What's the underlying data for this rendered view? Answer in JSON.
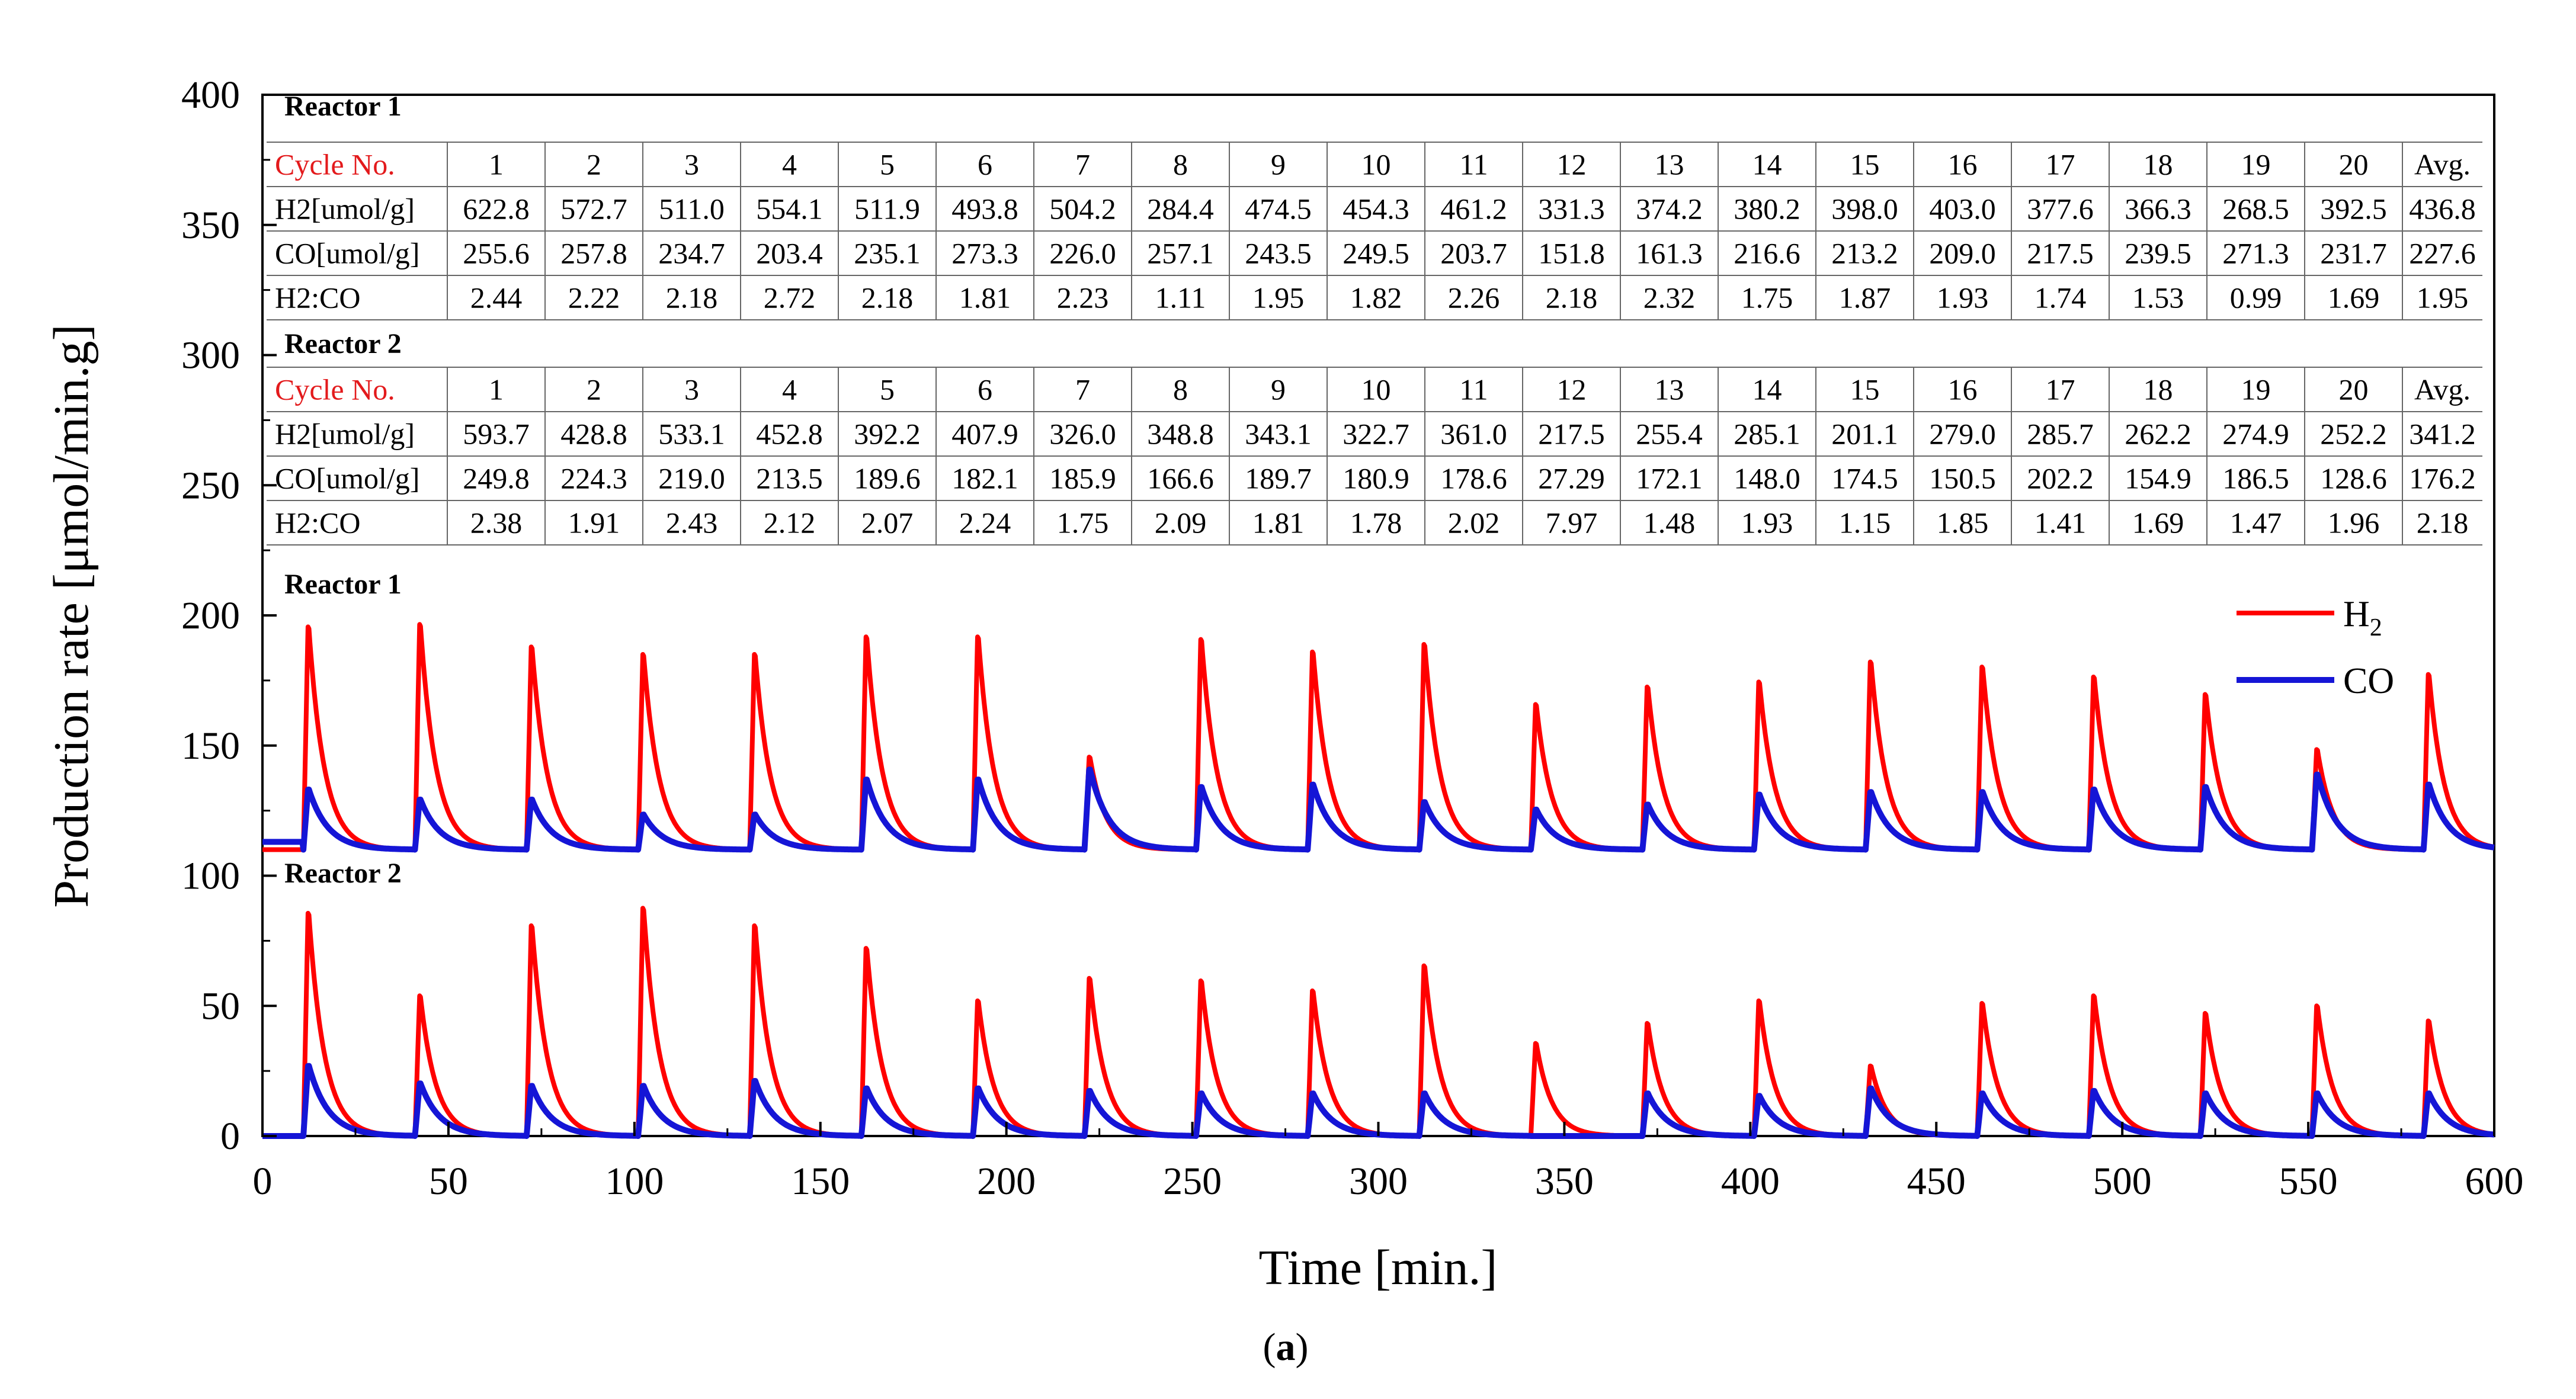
{
  "chart_data": {
    "type": "line",
    "ylabel": "Production rate [μmol/min.g]",
    "xlabel": "Time [min.]",
    "caption": "(a)",
    "caption_letter": "a",
    "xlim": [
      0,
      600
    ],
    "ylim": [
      0,
      400
    ],
    "x_ticks": [
      0,
      50,
      100,
      150,
      200,
      250,
      300,
      350,
      400,
      450,
      500,
      550,
      600
    ],
    "y_ticks": [
      0,
      50,
      100,
      150,
      200,
      250,
      300,
      350,
      400
    ],
    "legend": {
      "position": "top-right of plotted curves",
      "entries": [
        {
          "name": "H",
          "sub": "2",
          "color": "#ff0000"
        },
        {
          "name": "CO",
          "sub": "",
          "color": "#1515d6"
        }
      ]
    },
    "cycle_period_min": 30,
    "first_cycle_start_min": 11,
    "panels": [
      {
        "name": "Reactor 1",
        "baseline": 110,
        "pre_start_co_level": 113,
        "h2_peaks": [
          199,
          200,
          191,
          188,
          188,
          195,
          195,
          147,
          194,
          189,
          192,
          168,
          175,
          177,
          185,
          183,
          179,
          172,
          150,
          180
        ],
        "co_peaks": [
          134,
          130,
          130,
          124,
          124,
          138,
          138,
          142,
          135,
          136,
          129,
          126,
          128,
          132,
          133,
          133,
          134,
          135,
          140,
          136
        ]
      },
      {
        "name": "Reactor 2",
        "baseline": 0,
        "pre_start_co_level": 0,
        "h2_peaks": [
          89,
          56,
          84,
          91,
          84,
          75,
          54,
          63,
          62,
          58,
          68,
          37,
          45,
          54,
          28,
          53,
          56,
          49,
          52,
          46
        ],
        "co_peaks": [
          28,
          21,
          20,
          20,
          22,
          19,
          19,
          18,
          17,
          17,
          17,
          0,
          17,
          16,
          19,
          17,
          18,
          17,
          17,
          17
        ]
      }
    ],
    "tables": [
      {
        "title": "Reactor 1",
        "header": [
          "Cycle No.",
          "1",
          "2",
          "3",
          "4",
          "5",
          "6",
          "7",
          "8",
          "9",
          "10",
          "11",
          "12",
          "13",
          "14",
          "15",
          "16",
          "17",
          "18",
          "19",
          "20",
          "Avg."
        ],
        "rows": [
          [
            "H2[umol/g]",
            "622.8",
            "572.7",
            "511.0",
            "554.1",
            "511.9",
            "493.8",
            "504.2",
            "284.4",
            "474.5",
            "454.3",
            "461.2",
            "331.3",
            "374.2",
            "380.2",
            "398.0",
            "403.0",
            "377.6",
            "366.3",
            "268.5",
            "392.5",
            "436.8"
          ],
          [
            "CO[umol/g]",
            "255.6",
            "257.8",
            "234.7",
            "203.4",
            "235.1",
            "273.3",
            "226.0",
            "257.1",
            "243.5",
            "249.5",
            "203.7",
            "151.8",
            "161.3",
            "216.6",
            "213.2",
            "209.0",
            "217.5",
            "239.5",
            "271.3",
            "231.7",
            "227.6"
          ],
          [
            "H2:CO",
            "2.44",
            "2.22",
            "2.18",
            "2.72",
            "2.18",
            "1.81",
            "2.23",
            "1.11",
            "1.95",
            "1.82",
            "2.26",
            "2.18",
            "2.32",
            "1.75",
            "1.87",
            "1.93",
            "1.74",
            "1.53",
            "0.99",
            "1.69",
            "1.95"
          ]
        ]
      },
      {
        "title": "Reactor 2",
        "header": [
          "Cycle No.",
          "1",
          "2",
          "3",
          "4",
          "5",
          "6",
          "7",
          "8",
          "9",
          "10",
          "11",
          "12",
          "13",
          "14",
          "15",
          "16",
          "17",
          "18",
          "19",
          "20",
          "Avg."
        ],
        "rows": [
          [
            "H2[umol/g]",
            "593.7",
            "428.8",
            "533.1",
            "452.8",
            "392.2",
            "407.9",
            "326.0",
            "348.8",
            "343.1",
            "322.7",
            "361.0",
            "217.5",
            "255.4",
            "285.1",
            "201.1",
            "279.0",
            "285.7",
            "262.2",
            "274.9",
            "252.2",
            "341.2"
          ],
          [
            "CO[umol/g]",
            "249.8",
            "224.3",
            "219.0",
            "213.5",
            "189.6",
            "182.1",
            "185.9",
            "166.6",
            "189.7",
            "180.9",
            "178.6",
            "27.29",
            "172.1",
            "148.0",
            "174.5",
            "150.5",
            "202.2",
            "154.9",
            "186.5",
            "128.6",
            "176.2"
          ],
          [
            "H2:CO",
            "2.38",
            "1.91",
            "2.43",
            "2.12",
            "2.07",
            "2.24",
            "1.75",
            "2.09",
            "1.81",
            "1.78",
            "2.02",
            "7.97",
            "1.48",
            "1.93",
            "1.15",
            "1.85",
            "1.41",
            "1.69",
            "1.47",
            "1.96",
            "2.18"
          ]
        ]
      }
    ]
  }
}
